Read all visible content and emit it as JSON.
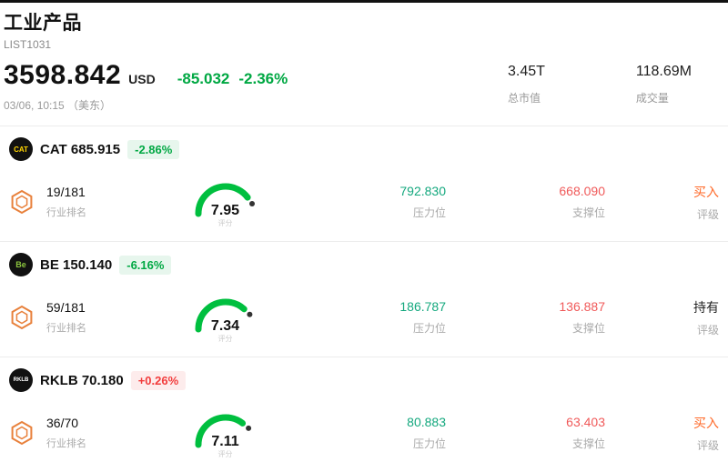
{
  "header": {
    "title": "工业产品",
    "subtitle": "LIST1031",
    "price": "3598.842",
    "currency": "USD",
    "change": "-85.032",
    "change_pct": "-2.36%",
    "timestamp": "03/06, 10:15 （美东）",
    "market_cap": {
      "value": "3.45T",
      "label": "总市值"
    },
    "volume": {
      "value": "118.69M",
      "label": "成交量"
    }
  },
  "labels": {
    "rank": "行业排名",
    "score": "评分",
    "resistance": "压力位",
    "support": "支撑位",
    "rating": "评级"
  },
  "colors": {
    "down_green": "#00a843",
    "up_red": "#f23c3c",
    "resistance_teal": "#14a87e",
    "support_red": "#f05a5a",
    "buy_orange": "#ff6a2a",
    "gauge_green": "#00bf3f"
  },
  "stocks": [
    {
      "ticker": "CAT",
      "logo": "CAT",
      "ticker_price": "CAT 685.915",
      "change_pct": "-2.86%",
      "direction": "down",
      "rank": "19/181",
      "score": "7.95",
      "resistance": "792.830",
      "support": "668.090",
      "rating": "买入",
      "rating_type": "buy"
    },
    {
      "ticker": "BE",
      "logo": "Be",
      "ticker_price": "BE 150.140",
      "change_pct": "-6.16%",
      "direction": "down",
      "rank": "59/181",
      "score": "7.34",
      "resistance": "186.787",
      "support": "136.887",
      "rating": "持有",
      "rating_type": "hold"
    },
    {
      "ticker": "RKLB",
      "logo": "RKLB",
      "ticker_price": "RKLB 70.180",
      "change_pct": "+0.26%",
      "direction": "up",
      "rank": "36/70",
      "score": "7.11",
      "resistance": "80.883",
      "support": "63.403",
      "rating": "买入",
      "rating_type": "buy"
    }
  ]
}
